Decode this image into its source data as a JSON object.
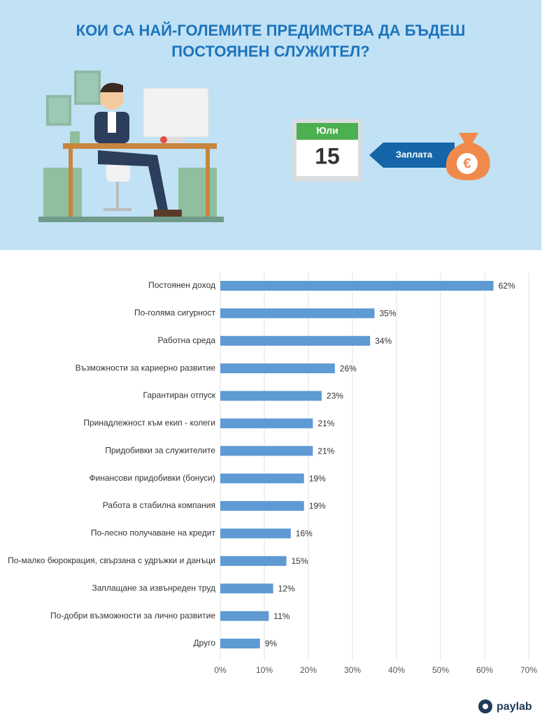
{
  "header": {
    "title_lines": [
      "КОИ СА НАЙ-ГОЛЕМИТЕ ПРЕДИМСТВА ДА БЪДЕШ",
      "ПОСТОЯНЕН СЛУЖИТЕЛ?"
    ],
    "calendar": {
      "month": "Юли",
      "day": "15"
    },
    "salary_label": "Заплата",
    "currency": "€"
  },
  "chart_data": {
    "type": "bar",
    "orientation": "horizontal",
    "categories": [
      "Постоянен доход",
      "По-голяма сигурност",
      "Работна среда",
      "Възможности за кариерно развитие",
      "Гарантиран отпуск",
      "Принадлежност към екип - колеги",
      "Придобивки за служителите",
      "Финансови придобивки (бонуси)",
      "Работа в стабилна компания",
      "По-лесно получаване на кредит",
      "По-малко бюрокрация, свързана с удръжки и данъци",
      "Заплащане за извънреден труд",
      "По-добри възможности за лично развитие",
      "Друго"
    ],
    "values": [
      62,
      35,
      34,
      26,
      23,
      21,
      21,
      19,
      19,
      16,
      15,
      12,
      11,
      9
    ],
    "value_labels": [
      "62%",
      "35%",
      "34%",
      "26%",
      "23%",
      "21%",
      "21%",
      "19%",
      "19%",
      "16%",
      "15%",
      "12%",
      "11%",
      "9%"
    ],
    "color": "#5e9ad3",
    "xlim": [
      0,
      70
    ],
    "xticks": [
      {
        "value": 0,
        "label": "0%"
      },
      {
        "value": 10,
        "label": "10%"
      },
      {
        "value": 20,
        "label": "20%"
      },
      {
        "value": 30,
        "label": "30%"
      },
      {
        "value": 40,
        "label": "40%"
      },
      {
        "value": 50,
        "label": "50%"
      },
      {
        "value": 60,
        "label": "60%"
      },
      {
        "value": 70,
        "label": "70%"
      }
    ],
    "grid": true
  },
  "footer": {
    "logo": "paylab"
  }
}
